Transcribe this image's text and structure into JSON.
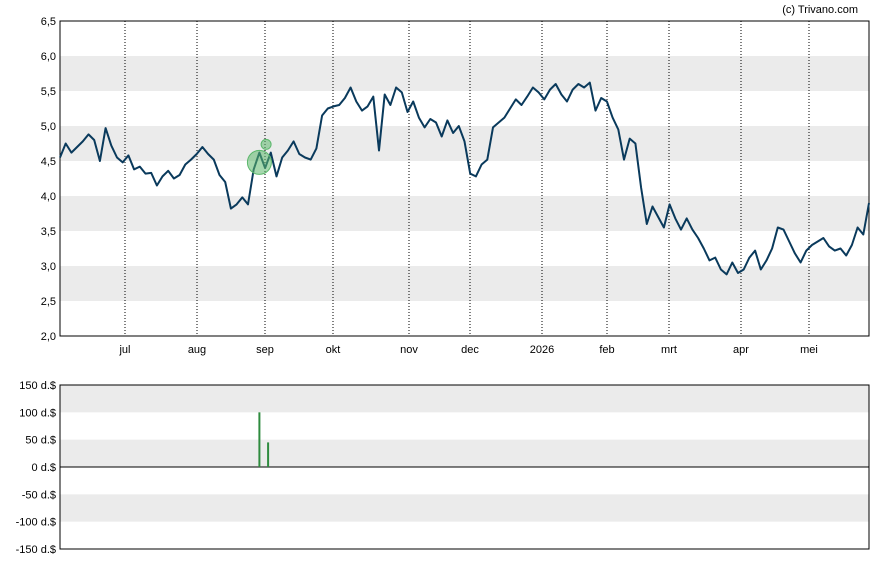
{
  "credit": "(c) Trivano.com",
  "colors": {
    "line": "#0a3a5c",
    "band": "#ebebeb",
    "bar_positive": "#2e8b3e",
    "marker": "#5cb86c",
    "grid": "#000000"
  },
  "chart_data": [
    {
      "type": "line",
      "ylim": [
        2.0,
        6.5
      ],
      "yticks": [
        "2,0",
        "2,5",
        "3,0",
        "3,5",
        "4,0",
        "4,5",
        "5,0",
        "5,5",
        "6,0",
        "6,5"
      ],
      "xticks": [
        "jul",
        "aug",
        "sep",
        "okt",
        "nov",
        "dec",
        "2026",
        "feb",
        "mrt",
        "apr",
        "mei"
      ],
      "grid_x": "dotted",
      "shaded_bands": true,
      "series": [
        {
          "values": [
            4.55,
            4.75,
            4.62,
            4.7,
            4.78,
            4.88,
            4.8,
            4.5,
            4.97,
            4.72,
            4.55,
            4.48,
            4.58,
            4.38,
            4.42,
            4.32,
            4.33,
            4.15,
            4.28,
            4.36,
            4.25,
            4.3,
            4.45,
            4.52,
            4.6,
            4.7,
            4.6,
            4.52,
            4.3,
            4.2,
            3.82,
            3.88,
            3.98,
            3.88,
            4.38,
            4.62,
            4.4,
            4.62,
            4.28,
            4.55,
            4.65,
            4.78,
            4.6,
            4.55,
            4.52,
            4.68,
            5.15,
            5.25,
            5.28,
            5.3,
            5.4,
            5.55,
            5.35,
            5.22,
            5.28,
            5.42,
            4.65,
            5.45,
            5.3,
            5.55,
            5.48,
            5.2,
            5.35,
            5.12,
            4.98,
            5.1,
            5.05,
            4.85,
            5.08,
            4.9,
            5.0,
            4.78,
            4.32,
            4.28,
            4.45,
            4.52,
            4.98,
            5.05,
            5.12,
            5.25,
            5.38,
            5.3,
            5.42,
            5.55,
            5.48,
            5.38,
            5.52,
            5.6,
            5.45,
            5.35,
            5.52,
            5.6,
            5.55,
            5.62,
            5.22,
            5.4,
            5.35,
            5.12,
            4.95,
            4.52,
            4.82,
            4.75,
            4.12,
            3.6,
            3.85,
            3.7,
            3.55,
            3.88,
            3.68,
            3.52,
            3.68,
            3.52,
            3.4,
            3.25,
            3.08,
            3.12,
            2.95,
            2.88,
            3.05,
            2.9,
            2.95,
            3.12,
            3.22,
            2.95,
            3.08,
            3.25,
            3.55,
            3.52,
            3.35,
            3.18,
            3.05,
            3.22,
            3.3,
            3.35,
            3.4,
            3.28,
            3.22,
            3.25,
            3.15,
            3.3,
            3.55,
            3.45,
            3.9
          ]
        }
      ],
      "marker": {
        "x": 35,
        "y": 4.48
      }
    },
    {
      "type": "bar",
      "ylim": [
        -150,
        150
      ],
      "yticks": [
        "-150 d.$",
        "-100 d.$",
        "-50 d.$",
        "0 d.$",
        "50 d.$",
        "100 d.$",
        "150 d.$"
      ],
      "bars": [
        {
          "x": 35,
          "value": 100
        },
        {
          "x": 36,
          "value": 45
        }
      ]
    }
  ]
}
